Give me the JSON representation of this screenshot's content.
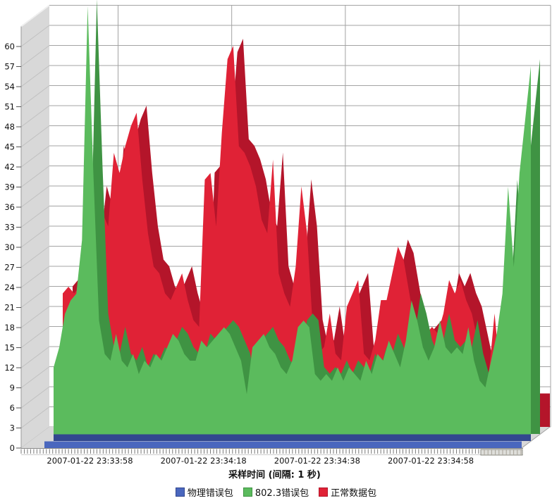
{
  "chart": {
    "x_axis_title": "采样时间 (间隔: 1 秒)",
    "colors": {
      "background": "#ffffff",
      "wall_gray": "#d8d8d8",
      "wall_hatch": "#c0c0c0",
      "gridline": "#a3a3a3",
      "axis_line": "#888888",
      "tick": "#787878",
      "label_text": "#111111"
    }
  },
  "chart_data": {
    "type": "area",
    "pseudo_3d": true,
    "title": "",
    "xlabel": "采样时间 (间隔: 1 秒)",
    "ylabel": "",
    "grid": true,
    "legend_position": "bottom",
    "x_axis": {
      "interval_seconds": 1,
      "tick_labels": [
        "2007-01-22 23:33:58",
        "2007-01-22 23:34:18",
        "2007-01-22 23:34:38",
        "2007-01-22 23:34:58"
      ],
      "tick_indices": [
        8,
        28,
        48,
        68
      ]
    },
    "y_axis": {
      "min": 0,
      "max": 63,
      "tick_step": 3,
      "max_label": 60
    },
    "series": [
      {
        "name": "物理错误包",
        "color": "#4a67be",
        "dark_color": "#32478f",
        "depth": 0,
        "values": [
          1,
          1,
          1,
          1,
          1,
          1,
          1,
          1,
          1,
          1,
          1,
          1,
          1,
          1,
          1,
          1,
          1,
          1,
          1,
          1,
          1,
          1,
          1,
          1,
          1,
          1,
          1,
          1,
          1,
          1,
          1,
          1,
          1,
          1,
          1,
          1,
          1,
          1,
          1,
          1,
          1,
          1,
          1,
          1,
          1,
          1,
          1,
          1,
          1,
          1,
          1,
          1,
          1,
          1,
          1,
          1,
          1,
          1,
          1,
          1,
          1,
          1,
          1,
          1,
          1,
          1,
          1,
          1,
          1,
          1,
          1,
          1,
          1,
          1,
          1,
          1,
          1,
          1,
          1,
          1,
          1,
          1,
          1,
          1,
          1
        ]
      },
      {
        "name": "802.3错误包",
        "color": "#5bbb5d",
        "dark_color": "#3f9343",
        "depth": 1,
        "values": [
          11,
          14,
          19,
          21,
          22,
          30,
          65,
          40,
          18,
          13,
          12,
          16,
          12,
          11,
          13,
          10,
          12,
          11,
          13,
          12,
          14,
          16,
          15,
          13,
          12,
          12,
          15,
          14,
          15,
          16,
          17,
          16,
          14,
          12,
          7,
          14,
          15,
          16,
          14,
          13,
          11,
          10,
          12,
          17,
          18,
          17,
          10,
          9,
          10,
          9,
          11,
          9,
          11,
          10,
          9,
          12,
          10,
          13,
          12,
          15,
          13,
          11,
          15,
          21,
          18,
          14,
          12,
          14,
          18,
          14,
          13,
          14,
          13,
          17,
          12,
          9,
          8,
          12,
          16,
          22,
          38,
          26,
          40,
          48,
          56
        ]
      },
      {
        "name": "正常数据包",
        "color": "#e02236",
        "dark_color": "#b4152a",
        "depth": 2,
        "values": [
          21,
          22,
          21,
          22,
          23,
          28,
          36,
          33,
          31,
          42,
          39,
          43,
          46,
          48,
          38,
          30,
          25,
          24,
          21,
          20,
          22,
          24,
          20,
          17,
          16,
          38,
          39,
          31,
          45,
          56,
          58,
          43,
          42,
          40,
          37,
          32,
          30,
          41,
          24,
          21,
          19,
          25,
          37,
          30,
          16,
          12,
          13,
          18,
          12,
          11,
          19,
          21,
          23,
          12,
          11,
          14,
          20,
          20,
          24,
          28,
          26,
          21,
          16,
          14,
          15,
          16,
          15,
          18,
          23,
          21,
          23,
          20,
          18,
          14,
          10,
          9,
          18,
          9,
          8,
          7,
          6,
          5,
          5,
          5,
          5
        ]
      }
    ]
  }
}
